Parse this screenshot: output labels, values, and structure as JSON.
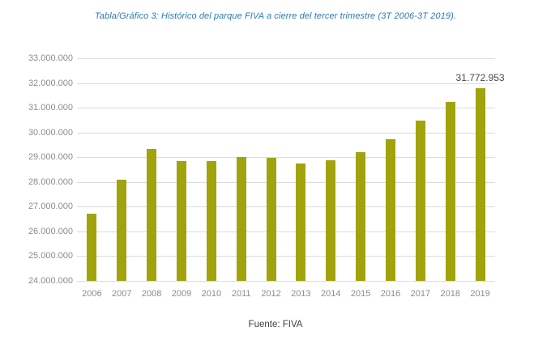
{
  "title": "Tabla/Gráfico 3: Histórico del parque FIVA a cierre del tercer trimestre (3T 2006-3T 2019).",
  "source": "Fuente: FIVA",
  "colors": {
    "bar": "#A1A30D",
    "title": "#2B7BB5",
    "tick_label": "#8C8C8C",
    "annotation": "#484848",
    "source_text": "#3F3F3F",
    "gridline": "#DCDCDC",
    "background": "#FFFFFF"
  },
  "chart_data": {
    "type": "bar",
    "title": "Tabla/Gráfico 3: Histórico del parque FIVA a cierre del tercer trimestre (3T 2006-3T 2019).",
    "categories": [
      "2006",
      "2007",
      "2008",
      "2009",
      "2010",
      "2011",
      "2012",
      "2013",
      "2014",
      "2015",
      "2016",
      "2017",
      "2018",
      "2019"
    ],
    "values": [
      26730000,
      28080000,
      29330000,
      28850000,
      28830000,
      29000000,
      28990000,
      28730000,
      28880000,
      29220000,
      29740000,
      30470000,
      31240000,
      31772953
    ],
    "annotations": [
      {
        "category": "2019",
        "value": 31772953,
        "text": "31.772.953"
      }
    ],
    "xlabel": "",
    "ylabel": "",
    "ylim": [
      24000000,
      33000000
    ],
    "ytick_step": 1000000,
    "ytick_format": "dotted-thousands",
    "grid": true,
    "legend": false
  }
}
